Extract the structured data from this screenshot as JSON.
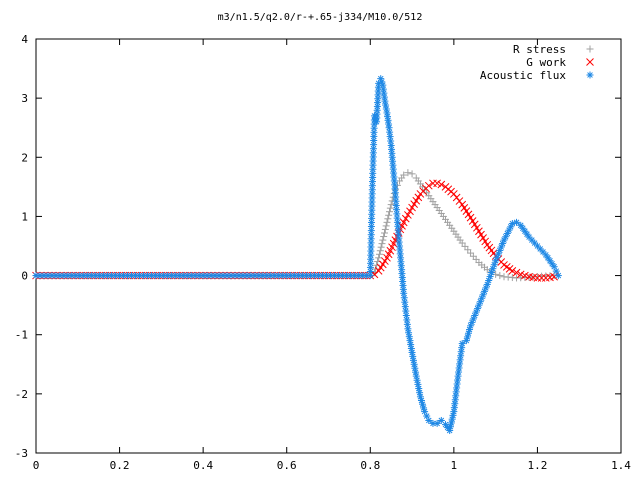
{
  "chart_data": {
    "type": "scatter",
    "title": "m3/n1.5/q2.0/r-+.65-j334/M10.0/512",
    "xlabel": "",
    "ylabel": "",
    "xlim": [
      0,
      1.4
    ],
    "ylim": [
      -3,
      4
    ],
    "x_ticks": [
      "0",
      "0.2",
      "0.4",
      "0.6",
      "0.8",
      "1",
      "1.2",
      "1.4"
    ],
    "x_tick_values": [
      0,
      0.2,
      0.4,
      0.6,
      0.8,
      1.0,
      1.2,
      1.4
    ],
    "y_ticks": [
      "4",
      "3",
      "2",
      "1",
      "0",
      "-1",
      "-2",
      "-3"
    ],
    "y_tick_values": [
      4,
      3,
      2,
      1,
      0,
      -1,
      -2,
      -3
    ],
    "grid": false,
    "legend_position": "top-right",
    "series": [
      {
        "name": "R stress",
        "marker": "+",
        "color": "#a0a0a0",
        "points": [
          [
            0.0,
            0.0
          ],
          [
            0.8,
            0.0
          ],
          [
            0.81,
            0.05
          ],
          [
            0.82,
            0.3
          ],
          [
            0.83,
            0.6
          ],
          [
            0.84,
            0.9
          ],
          [
            0.85,
            1.2
          ],
          [
            0.86,
            1.45
          ],
          [
            0.87,
            1.6
          ],
          [
            0.88,
            1.7
          ],
          [
            0.89,
            1.74
          ],
          [
            0.9,
            1.72
          ],
          [
            0.91,
            1.65
          ],
          [
            0.92,
            1.55
          ],
          [
            0.93,
            1.45
          ],
          [
            0.94,
            1.35
          ],
          [
            0.96,
            1.15
          ],
          [
            0.98,
            0.95
          ],
          [
            1.0,
            0.75
          ],
          [
            1.02,
            0.55
          ],
          [
            1.04,
            0.38
          ],
          [
            1.06,
            0.22
          ],
          [
            1.08,
            0.1
          ],
          [
            1.1,
            0.02
          ],
          [
            1.12,
            -0.02
          ],
          [
            1.15,
            -0.04
          ],
          [
            1.18,
            -0.03
          ],
          [
            1.21,
            -0.01
          ],
          [
            1.24,
            0.0
          ]
        ]
      },
      {
        "name": "G work",
        "marker": "x",
        "color": "#ff0000",
        "points": [
          [
            0.0,
            0.0
          ],
          [
            0.8,
            0.0
          ],
          [
            0.81,
            0.02
          ],
          [
            0.82,
            0.08
          ],
          [
            0.84,
            0.3
          ],
          [
            0.86,
            0.6
          ],
          [
            0.88,
            0.9
          ],
          [
            0.9,
            1.15
          ],
          [
            0.92,
            1.38
          ],
          [
            0.94,
            1.52
          ],
          [
            0.95,
            1.56
          ],
          [
            0.96,
            1.56
          ],
          [
            0.97,
            1.54
          ],
          [
            0.98,
            1.5
          ],
          [
            1.0,
            1.38
          ],
          [
            1.02,
            1.2
          ],
          [
            1.04,
            0.98
          ],
          [
            1.06,
            0.75
          ],
          [
            1.08,
            0.52
          ],
          [
            1.1,
            0.33
          ],
          [
            1.12,
            0.18
          ],
          [
            1.14,
            0.08
          ],
          [
            1.16,
            0.02
          ],
          [
            1.18,
            -0.02
          ],
          [
            1.2,
            -0.04
          ],
          [
            1.22,
            -0.04
          ],
          [
            1.24,
            -0.02
          ]
        ]
      },
      {
        "name": "Acoustic flux",
        "marker": "*",
        "color": "#1e88e5",
        "points": [
          [
            0.0,
            0.0
          ],
          [
            0.8,
            0.0
          ],
          [
            0.805,
            1.52
          ],
          [
            0.81,
            2.7
          ],
          [
            0.815,
            2.6
          ],
          [
            0.82,
            3.25
          ],
          [
            0.825,
            3.33
          ],
          [
            0.83,
            3.22
          ],
          [
            0.835,
            2.95
          ],
          [
            0.84,
            2.75
          ],
          [
            0.845,
            2.5
          ],
          [
            0.85,
            2.2
          ],
          [
            0.855,
            1.8
          ],
          [
            0.86,
            1.4
          ],
          [
            0.865,
            0.9
          ],
          [
            0.87,
            0.5
          ],
          [
            0.875,
            0.1
          ],
          [
            0.88,
            -0.3
          ],
          [
            0.885,
            -0.6
          ],
          [
            0.89,
            -0.9
          ],
          [
            0.9,
            -1.3
          ],
          [
            0.91,
            -1.7
          ],
          [
            0.92,
            -2.05
          ],
          [
            0.93,
            -2.3
          ],
          [
            0.94,
            -2.45
          ],
          [
            0.95,
            -2.5
          ],
          [
            0.96,
            -2.5
          ],
          [
            0.97,
            -2.45
          ],
          [
            0.98,
            -2.52
          ],
          [
            0.99,
            -2.62
          ],
          [
            1.0,
            -2.3
          ],
          [
            1.01,
            -1.7
          ],
          [
            1.02,
            -1.15
          ],
          [
            1.03,
            -1.1
          ],
          [
            1.04,
            -0.85
          ],
          [
            1.06,
            -0.5
          ],
          [
            1.08,
            -0.15
          ],
          [
            1.1,
            0.25
          ],
          [
            1.12,
            0.6
          ],
          [
            1.14,
            0.88
          ],
          [
            1.15,
            0.9
          ],
          [
            1.16,
            0.85
          ],
          [
            1.18,
            0.65
          ],
          [
            1.2,
            0.5
          ],
          [
            1.22,
            0.35
          ],
          [
            1.24,
            0.15
          ],
          [
            1.25,
            0.0
          ]
        ]
      }
    ]
  }
}
